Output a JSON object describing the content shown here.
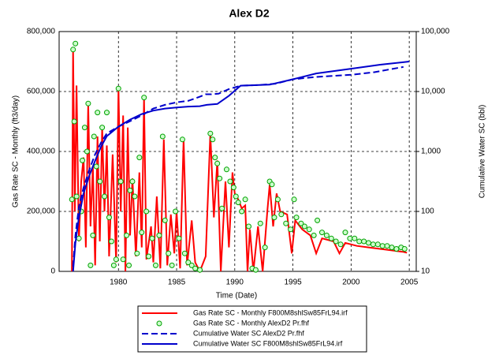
{
  "chart_data": {
    "type": "line",
    "title": "Alex D2",
    "x_label": "Time (Date)",
    "y_label": "Gas Rate SC - Monthly (ft3/day)",
    "y2_label": "Cumulative Water SC (bbl)",
    "xlim": [
      1974.9,
      2005.6
    ],
    "xticks": [
      1980,
      1985,
      1990,
      1995,
      2000,
      2005
    ],
    "ylim": [
      0,
      800000
    ],
    "yticks": [
      0,
      {
        "value": 200000,
        "label": "200,000"
      },
      {
        "value": 400000,
        "label": "400,000"
      },
      {
        "value": 600000,
        "label": "600,000"
      },
      {
        "value": 800000,
        "label": "800,000"
      }
    ],
    "y2lim": [
      10,
      100000
    ],
    "y2_log": true,
    "y2ticks": [
      10,
      100,
      {
        "value": 1000,
        "label": "1,000"
      },
      {
        "value": 10000,
        "label": "10,000"
      },
      {
        "value": 100000,
        "label": "100,000"
      }
    ],
    "grid": true,
    "legend": "bottom",
    "series": [
      {
        "name": "Gas Rate SC - Monthly  F800M8shlSw85FrL94.irf",
        "color": "#ff0000",
        "line_style": "solid",
        "marker": "none",
        "x": [
          1976.0,
          1976.1,
          1976.25,
          1976.4,
          1976.6,
          1976.8,
          1977.0,
          1977.2,
          1977.4,
          1977.6,
          1977.8,
          1978.0,
          1978.2,
          1978.4,
          1978.6,
          1978.8,
          1979.0,
          1979.2,
          1979.5,
          1979.8,
          1980.0,
          1980.2,
          1980.4,
          1980.6,
          1980.8,
          1981.0,
          1981.2,
          1981.5,
          1981.8,
          1982.0,
          1982.2,
          1982.4,
          1982.8,
          1983.0,
          1983.3,
          1983.6,
          1983.9,
          1984.2,
          1984.5,
          1984.8,
          1985.0,
          1985.3,
          1985.6,
          1985.9,
          1986.3,
          1986.6,
          1987.0,
          1987.5,
          1987.9,
          1988.2,
          1988.5,
          1988.8,
          1989.2,
          1989.5,
          1989.8,
          1990.0,
          1990.3,
          1990.6,
          1990.9,
          1991.1,
          1991.3,
          1991.6,
          1992.0,
          1992.4,
          1992.8,
          1993.0,
          1993.3,
          1993.6,
          1993.9,
          1994.5,
          1994.9,
          1995.2,
          1995.8,
          1996.5,
          1997.0,
          1997.5,
          1998.5,
          1999.0,
          1999.5,
          2000.5,
          2001.5,
          2002.5,
          2003.5,
          2004.5,
          2004.8
        ],
        "values": [
          0,
          740000,
          200000,
          620000,
          100000,
          300000,
          380000,
          80000,
          560000,
          150000,
          350000,
          20000,
          450000,
          100000,
          480000,
          200000,
          420000,
          50000,
          390000,
          30000,
          610000,
          200000,
          520000,
          0,
          480000,
          120000,
          310000,
          50000,
          330000,
          80000,
          580000,
          40000,
          150000,
          30000,
          250000,
          10000,
          440000,
          20000,
          190000,
          60000,
          200000,
          10000,
          440000,
          20000,
          170000,
          30000,
          0,
          50000,
          460000,
          180000,
          370000,
          0,
          300000,
          80000,
          330000,
          260000,
          240000,
          210000,
          220000,
          0,
          140000,
          0,
          150000,
          0,
          200000,
          290000,
          150000,
          260000,
          200000,
          190000,
          60000,
          170000,
          140000,
          120000,
          60000,
          110000,
          100000,
          60000,
          95000,
          85000,
          80000,
          75000,
          70000,
          65000,
          62000
        ]
      },
      {
        "name": "Gas Rate SC - Monthly  AlexD2 Pr.fhf",
        "color": "#00a000",
        "line_style": "none",
        "marker": "circle",
        "x": [
          1976.0,
          1976.1,
          1976.2,
          1976.3,
          1976.4,
          1976.6,
          1976.8,
          1976.9,
          1977.1,
          1977.3,
          1977.4,
          1977.6,
          1977.8,
          1977.9,
          1978.1,
          1978.2,
          1978.4,
          1978.6,
          1978.8,
          1979.0,
          1979.2,
          1979.4,
          1979.6,
          1979.8,
          1980.0,
          1980.2,
          1980.4,
          1980.7,
          1980.9,
          1981.0,
          1981.2,
          1981.4,
          1981.6,
          1981.8,
          1982.0,
          1982.2,
          1982.4,
          1982.6,
          1982.9,
          1983.2,
          1983.5,
          1983.8,
          1984.0,
          1984.3,
          1984.6,
          1984.9,
          1985.2,
          1985.5,
          1985.7,
          1986.0,
          1986.3,
          1986.6,
          1987.0,
          1987.9,
          1988.1,
          1988.3,
          1988.5,
          1988.7,
          1988.9,
          1989.3,
          1989.6,
          1989.9,
          1990.1,
          1990.3,
          1990.6,
          1990.9,
          1991.2,
          1991.5,
          1991.8,
          1992.2,
          1992.6,
          1993.0,
          1993.2,
          1993.4,
          1993.7,
          1994.0,
          1994.4,
          1994.8,
          1995.1,
          1995.3,
          1995.7,
          1996.0,
          1996.4,
          1996.8,
          1997.1,
          1997.5,
          1997.9,
          1998.3,
          1998.7,
          1999.1,
          1999.5,
          1999.9,
          2000.3,
          2000.7,
          2001.1,
          2001.5,
          2001.9,
          2002.3,
          2002.7,
          2003.1,
          2003.5,
          2003.9,
          2004.3,
          2004.6
        ],
        "values": [
          240000,
          740000,
          500000,
          760000,
          250000,
          110000,
          200000,
          370000,
          480000,
          400000,
          560000,
          20000,
          120000,
          450000,
          350000,
          530000,
          300000,
          480000,
          250000,
          530000,
          180000,
          100000,
          20000,
          40000,
          610000,
          300000,
          40000,
          120000,
          20000,
          270000,
          300000,
          250000,
          60000,
          380000,
          130000,
          580000,
          200000,
          50000,
          110000,
          20000,
          120000,
          450000,
          170000,
          60000,
          20000,
          200000,
          110000,
          440000,
          60000,
          30000,
          20000,
          10000,
          5000,
          460000,
          440000,
          380000,
          360000,
          310000,
          210000,
          340000,
          300000,
          280000,
          250000,
          230000,
          200000,
          240000,
          150000,
          10000,
          5000,
          160000,
          80000,
          300000,
          290000,
          180000,
          240000,
          190000,
          160000,
          140000,
          240000,
          180000,
          160000,
          150000,
          140000,
          120000,
          170000,
          130000,
          120000,
          110000,
          100000,
          90000,
          130000,
          110000,
          110000,
          100000,
          100000,
          95000,
          90000,
          90000,
          85000,
          85000,
          80000,
          75000,
          80000,
          75000
        ]
      },
      {
        "name": "Cumulative Water SC  AlexD2 Pr.fhf",
        "color": "#0000cc",
        "line_style": "dashed",
        "marker": "none",
        "axis": "y2",
        "x": [
          1976.1,
          1976.3,
          1976.6,
          1977.0,
          1977.5,
          1978.0,
          1978.5,
          1979.0,
          1980.0,
          1981.0,
          1982.0,
          1983.0,
          1984.0,
          1985.0,
          1986.0,
          1987.0,
          1987.5,
          1988.0,
          1988.6,
          1989.5,
          1990.5,
          1992.0,
          1993.5,
          1995.0,
          1997.0,
          2000.0,
          2002.0,
          2004.5
        ],
        "values": [
          12,
          40,
          120,
          250,
          500,
          900,
          1400,
          2000,
          2600,
          3200,
          4000,
          5200,
          6000,
          6600,
          7000,
          8200,
          9000,
          9000,
          9200,
          11000,
          12500,
          12800,
          13500,
          16000,
          17500,
          19000,
          21000,
          25700
        ]
      },
      {
        "name": "Cumulative Water SC  F800M8shlSw85FrL94.irf",
        "color": "#0000cc",
        "line_style": "solid",
        "marker": "none",
        "axis": "y2",
        "x": [
          1976.1,
          1976.3,
          1976.6,
          1977.0,
          1977.5,
          1978.0,
          1978.5,
          1979.0,
          1980.0,
          1981.0,
          1982.0,
          1983.0,
          1984.0,
          1985.0,
          1986.0,
          1987.0,
          1987.6,
          1988.5,
          1989.5,
          1990.5,
          1993.0,
          1995.0,
          1997.0,
          2000.0,
          2002.5,
          2005.0
        ],
        "values": [
          10,
          30,
          80,
          200,
          400,
          700,
          1200,
          1800,
          2600,
          3400,
          4200,
          4800,
          5200,
          5400,
          5600,
          5700,
          6000,
          6200,
          8500,
          12500,
          13000,
          16000,
          20000,
          24000,
          28000,
          31600
        ]
      }
    ]
  }
}
